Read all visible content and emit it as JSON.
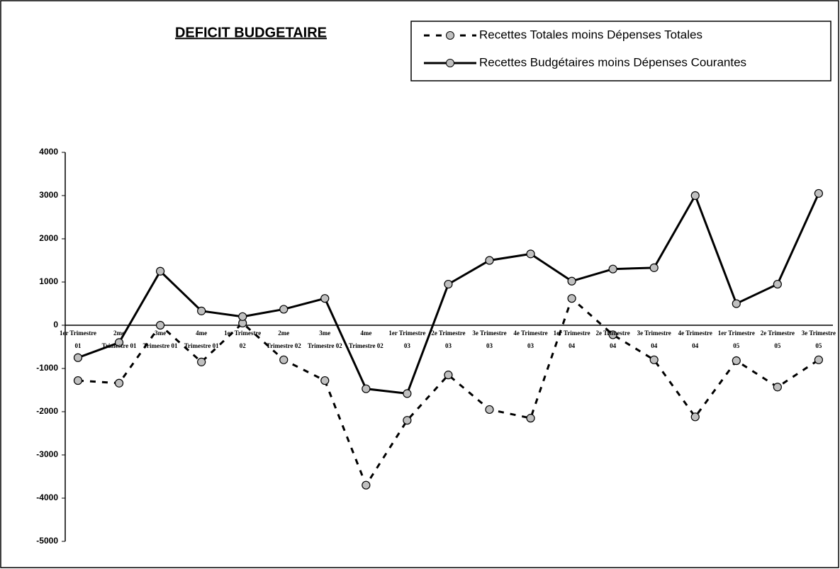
{
  "chart_data": {
    "type": "line",
    "title": "DEFICIT BUDGETAIRE",
    "categories": [
      "1er Trimestre 01",
      "2me Trimestre 01",
      "3me Trimestre 01",
      "4me Trimestre 01",
      "1er Trimestre 02",
      "2me Trimestre 02",
      "3me Trimestre 02",
      "4me Trimestre 02",
      "1er Trimestre 03",
      "2e Trimestre 03",
      "3e Trimestre 03",
      "4e Trimestre 03",
      "1er Trimestre 04",
      "2e Trimestre 04",
      "3e Trimestre 04",
      "4e Trimestre 04",
      "1er Trimestre 05",
      "2e Trimestre 05",
      "3e Trimestre 05"
    ],
    "series": [
      {
        "name": "Recettes Totales moins Dépenses Totales",
        "color": "#000000",
        "dashed": true,
        "values": [
          -1280,
          -1340,
          0,
          -850,
          50,
          -800,
          -1280,
          -3700,
          -2200,
          -1150,
          -1950,
          -2150,
          620,
          -220,
          -800,
          -2120,
          -820,
          -1430,
          -800
        ]
      },
      {
        "name": "Recettes Budgétaires moins Dépenses Courantes",
        "color": "#000000",
        "dashed": false,
        "values": [
          -750,
          -400,
          1250,
          330,
          200,
          370,
          620,
          -1470,
          -1580,
          950,
          1500,
          1650,
          1020,
          1300,
          1330,
          3000,
          500,
          950,
          3050
        ]
      }
    ],
    "ylim": [
      -5000,
      4000
    ],
    "yticks": [
      -5000,
      -4000,
      -3000,
      -2000,
      -1000,
      0,
      1000,
      2000,
      3000,
      4000
    ],
    "grid": false,
    "legend": "top-right"
  }
}
